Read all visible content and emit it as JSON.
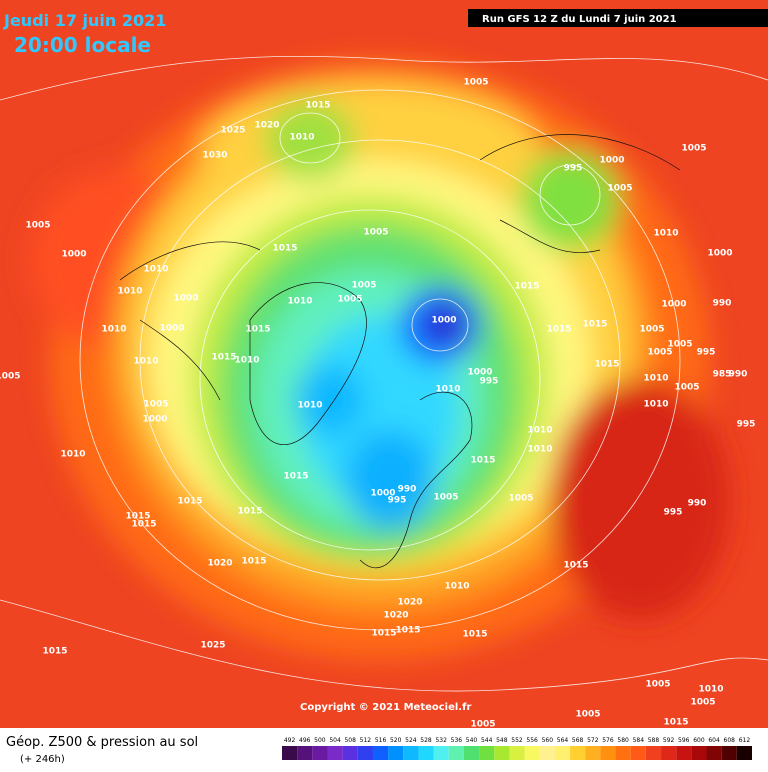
{
  "header": {
    "date": "Jeudi 17 juin 2021",
    "time": "20:00 locale",
    "run": "Run GFS 12 Z du Lundi 7 juin 2021"
  },
  "copyright": "Copyright © 2021 Meteociel.fr",
  "legend": {
    "title": "Géop. Z500 & pression au sol",
    "lead": "(+ 246h)",
    "ticks": [
      492,
      496,
      500,
      504,
      508,
      512,
      516,
      520,
      524,
      528,
      532,
      536,
      540,
      544,
      548,
      552,
      556,
      560,
      564,
      568,
      572,
      576,
      580,
      584,
      588,
      592,
      596,
      600,
      604,
      608,
      612
    ],
    "colors": [
      "#3a0a4a",
      "#55127a",
      "#6a1aa0",
      "#7a2ac8",
      "#5a30e0",
      "#3040f0",
      "#1060ff",
      "#0090ff",
      "#10b8ff",
      "#20d8ff",
      "#50f0f0",
      "#60f0b0",
      "#50e070",
      "#70e040",
      "#a8e830",
      "#d8f040",
      "#f8f860",
      "#fff090",
      "#fff070",
      "#ffd030",
      "#ffb020",
      "#ff9010",
      "#ff7010",
      "#ff5a18",
      "#f04020",
      "#e02818",
      "#c81410",
      "#a80808",
      "#800404",
      "#500000",
      "#180000"
    ]
  },
  "isobar_labels": [
    1005,
    1015,
    1025,
    1020,
    1010,
    1030,
    995,
    1000,
    1005,
    1005,
    1005,
    1015,
    1005,
    1000,
    1010,
    1010,
    1000,
    1005,
    1005,
    1010,
    1015,
    1000,
    1000,
    1015,
    1010,
    1015,
    1015,
    1005,
    1000,
    990,
    1010,
    1000,
    1005,
    1005,
    995,
    1015,
    1010,
    1010,
    1015,
    1000,
    995,
    1010,
    1010,
    1005,
    985,
    990,
    1005,
    1000,
    1010,
    1010,
    1010,
    1010,
    995,
    1010,
    1015,
    1015,
    990,
    1000,
    995,
    1005,
    1005,
    1015,
    1015,
    1015,
    1015,
    990,
    995,
    1015,
    1020,
    1015,
    1010,
    1020,
    1020,
    1015,
    1015,
    1015,
    1025,
    1015,
    1005,
    1010,
    1005,
    1005,
    1005,
    1015,
    1005
  ]
}
